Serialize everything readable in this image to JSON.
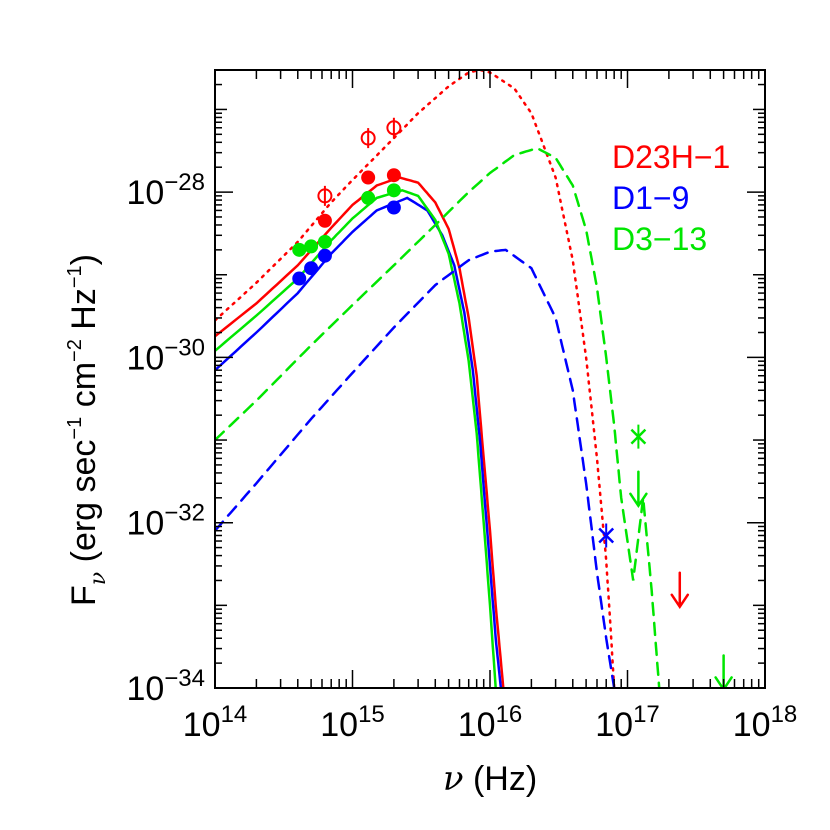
{
  "chart_data": {
    "type": "line",
    "xscale": "log",
    "yscale": "log",
    "xlim": [
      100000000000000.0,
      1e+18
    ],
    "ylim": [
      1e-34,
      3e-27
    ],
    "xlabel": "ν (Hz)",
    "ylabel": "F_ν (erg sec⁻¹ cm⁻² Hz⁻¹)",
    "x_ticks": [
      {
        "value": 100000000000000.0,
        "base": "10",
        "exp": "14"
      },
      {
        "value": 1000000000000000.0,
        "base": "10",
        "exp": "15"
      },
      {
        "value": 1e+16,
        "base": "10",
        "exp": "16"
      },
      {
        "value": 1e+17,
        "base": "10",
        "exp": "17"
      },
      {
        "value": 1e+18,
        "base": "10",
        "exp": "18"
      }
    ],
    "y_ticks": [
      {
        "value": 1e-34,
        "base": "10",
        "exp": "−34"
      },
      {
        "value": 1e-32,
        "base": "10",
        "exp": "−32"
      },
      {
        "value": 1e-30,
        "base": "10",
        "exp": "−30"
      },
      {
        "value": 1e-28,
        "base": "10",
        "exp": "−28"
      }
    ],
    "legend_placement": "top-right",
    "legend": [
      {
        "label": "D23H−1",
        "color": "#ff0000"
      },
      {
        "label": "D1−9",
        "color": "#0000ff"
      },
      {
        "label": "D3−13",
        "color": "#00e600"
      }
    ],
    "series": [
      {
        "name": "D23H−1",
        "color": "#ff0000",
        "style": "solid",
        "points": [
          [
            100000000000000.0,
            1.8e-30
          ],
          [
            200000000000000.0,
            4.5e-30
          ],
          [
            400000000000000.0,
            1.3e-29
          ],
          [
            700000000000000.0,
            3.7e-29
          ],
          [
            1000000000000000.0,
            7e-29
          ],
          [
            1500000000000000.0,
            1.2e-28
          ],
          [
            2200000000000000.0,
            1.5e-28
          ],
          [
            3000000000000000.0,
            1.3e-28
          ],
          [
            4000000000000000.0,
            7.5e-29
          ],
          [
            5000000000000000.0,
            3.6e-29
          ],
          [
            6000000000000000.0,
            1.2e-29
          ],
          [
            7000000000000000.0,
            3e-30
          ],
          [
            8000000000000000.0,
            6e-31
          ],
          [
            9000000000000000.0,
            6e-32
          ],
          [
            1e+16,
            8e-33
          ],
          [
            1.1e+16,
            1e-33
          ],
          [
            1.25e+16,
            1e-34
          ]
        ]
      },
      {
        "name": "D1−9",
        "color": "#0000ff",
        "style": "solid",
        "points": [
          [
            100000000000000.0,
            7e-31
          ],
          [
            200000000000000.0,
            2e-30
          ],
          [
            400000000000000.0,
            6e-30
          ],
          [
            700000000000000.0,
            1.8e-29
          ],
          [
            1000000000000000.0,
            3.3e-29
          ],
          [
            1500000000000000.0,
            6e-29
          ],
          [
            2500000000000000.0,
            8.5e-29
          ],
          [
            3500000000000000.0,
            6e-29
          ],
          [
            4500000000000000.0,
            3e-29
          ],
          [
            5500000000000000.0,
            1.3e-29
          ],
          [
            6500000000000000.0,
            3.5e-30
          ],
          [
            7500000000000000.0,
            7e-31
          ],
          [
            8500000000000000.0,
            9e-32
          ],
          [
            1e+16,
            3e-33
          ],
          [
            1.1e+16,
            4e-34
          ],
          [
            1.2e+16,
            1e-34
          ]
        ]
      },
      {
        "name": "D3−13",
        "color": "#00e600",
        "style": "solid",
        "points": [
          [
            100000000000000.0,
            1.2e-30
          ],
          [
            200000000000000.0,
            3.2e-30
          ],
          [
            400000000000000.0,
            9e-30
          ],
          [
            700000000000000.0,
            2.6e-29
          ],
          [
            1000000000000000.0,
            4.8e-29
          ],
          [
            1500000000000000.0,
            8.5e-29
          ],
          [
            2300000000000000.0,
            1.05e-28
          ],
          [
            3000000000000000.0,
            9e-29
          ],
          [
            4000000000000000.0,
            4.6e-29
          ],
          [
            5000000000000000.0,
            1.8e-29
          ],
          [
            6000000000000000.0,
            4.5e-30
          ],
          [
            7000000000000000.0,
            9e-31
          ],
          [
            8000000000000000.0,
            1.2e-31
          ],
          [
            9000000000000000.0,
            1e-32
          ],
          [
            1e+16,
            1e-33
          ],
          [
            1.1e+16,
            1e-34
          ]
        ]
      },
      {
        "name": "D23H−1",
        "color": "#ff0000",
        "style": "dotted",
        "points": [
          [
            100000000000000.0,
            2.8e-30
          ],
          [
            200000000000000.0,
            8e-30
          ],
          [
            400000000000000.0,
            2.5e-29
          ],
          [
            700000000000000.0,
            7.5e-29
          ],
          [
            1000000000000000.0,
            1.4e-28
          ],
          [
            2000000000000000.0,
            4.5e-28
          ],
          [
            3000000000000000.0,
            9e-28
          ],
          [
            5000000000000000.0,
            1.9e-27
          ],
          [
            7000000000000000.0,
            2.8e-27
          ],
          [
            8500000000000000.0,
            3e-27
          ],
          [
            1e+16,
            2.8e-27
          ],
          [
            1.5e+16,
            1.8e-27
          ],
          [
            2e+16,
            9e-28
          ],
          [
            3e+16,
            1.5e-28
          ],
          [
            4e+16,
            1.5e-29
          ],
          [
            5e+16,
            1e-30
          ],
          [
            6e+16,
            6e-32
          ],
          [
            7e+16,
            3.5e-33
          ],
          [
            7.5e+16,
            6e-34
          ],
          [
            8e+16,
            1e-34
          ]
        ]
      },
      {
        "name": "D3−13",
        "color": "#00e600",
        "style": "dashed",
        "points": [
          [
            100000000000000.0,
            1e-31
          ],
          [
            200000000000000.0,
            3e-31
          ],
          [
            500000000000000.0,
            1.4e-30
          ],
          [
            1000000000000000.0,
            4.3e-30
          ],
          [
            2000000000000000.0,
            1.3e-29
          ],
          [
            4000000000000000.0,
            4e-29
          ],
          [
            7000000000000000.0,
            1e-28
          ],
          [
            1e+16,
            1.7e-28
          ],
          [
            1.5e+16,
            2.8e-28
          ],
          [
            2.2e+16,
            3.4e-28
          ],
          [
            3e+16,
            2.6e-28
          ],
          [
            4e+16,
            1.2e-28
          ],
          [
            5e+16,
            3.5e-29
          ],
          [
            6e+16,
            7e-30
          ],
          [
            7e+16,
            1e-30
          ],
          [
            8e+16,
            1.5e-31
          ],
          [
            9e+16,
            2e-32
          ],
          [
            1.1e+17,
            2e-33
          ],
          [
            1.3e+17,
            2e-32
          ],
          [
            1.5e+17,
            1.5e-33
          ],
          [
            1.7e+17,
            1e-34
          ]
        ]
      },
      {
        "name": "D1−9",
        "color": "#0000ff",
        "style": "dashed",
        "points": [
          [
            100000000000000.0,
            8e-33
          ],
          [
            200000000000000.0,
            3e-32
          ],
          [
            500000000000000.0,
            1.8e-31
          ],
          [
            1000000000000000.0,
            6.5e-31
          ],
          [
            2000000000000000.0,
            2.3e-30
          ],
          [
            4000000000000000.0,
            7.5e-30
          ],
          [
            7000000000000000.0,
            1.5e-29
          ],
          [
            1e+16,
            1.9e-29
          ],
          [
            1.3e+16,
            2e-29
          ],
          [
            2e+16,
            1.2e-29
          ],
          [
            3e+16,
            3e-30
          ],
          [
            4e+16,
            4e-31
          ],
          [
            5e+16,
            3e-32
          ],
          [
            6e+16,
            2.5e-33
          ],
          [
            7e+16,
            4e-34
          ],
          [
            8e+16,
            1e-34
          ]
        ]
      }
    ],
    "points": [
      {
        "series": "D23H−1",
        "marker": "filled",
        "color": "#ff0000",
        "data": [
          [
            630000000000000.0,
            4.5e-29
          ],
          [
            1300000000000000.0,
            1.5e-28
          ],
          [
            2000000000000000.0,
            1.6e-28
          ]
        ]
      },
      {
        "series": "D1−9",
        "marker": "filled",
        "color": "#0000ff",
        "data": [
          [
            410000000000000.0,
            9e-30
          ],
          [
            500000000000000.0,
            1.2e-29
          ],
          [
            630000000000000.0,
            1.7e-29
          ],
          [
            2000000000000000.0,
            6.5e-29
          ]
        ]
      },
      {
        "series": "D3−13",
        "marker": "filled",
        "color": "#00e600",
        "data": [
          [
            410000000000000.0,
            2e-29
          ],
          [
            500000000000000.0,
            2.2e-29
          ],
          [
            630000000000000.0,
            2.5e-29
          ],
          [
            1300000000000000.0,
            8.5e-29
          ],
          [
            2000000000000000.0,
            1.05e-28
          ]
        ]
      },
      {
        "series": "D23H−1",
        "marker": "open",
        "color": "#ff0000",
        "data": [
          [
            630000000000000.0,
            9e-29
          ],
          [
            1300000000000000.0,
            4.5e-28
          ],
          [
            2000000000000000.0,
            6e-28
          ]
        ]
      },
      {
        "series": "D1−9",
        "marker": "cross",
        "color": "#0000ff",
        "data": [
          [
            7e+16,
            7e-33
          ]
        ]
      },
      {
        "series": "D3−13",
        "marker": "cross",
        "color": "#00e600",
        "data": [
          [
            1.2e+17,
            1.1e-31
          ]
        ]
      }
    ],
    "upper_limits": [
      {
        "series": "D3−13",
        "color": "#00e600",
        "x": 1.2e+17,
        "y": 2.5e-32
      },
      {
        "series": "D23H−1",
        "color": "#ff0000",
        "x": 2.4e+17,
        "y": 1.5e-33
      },
      {
        "series": "D3−13",
        "color": "#00e600",
        "x": 5e+17,
        "y": 1.5e-34
      }
    ]
  }
}
